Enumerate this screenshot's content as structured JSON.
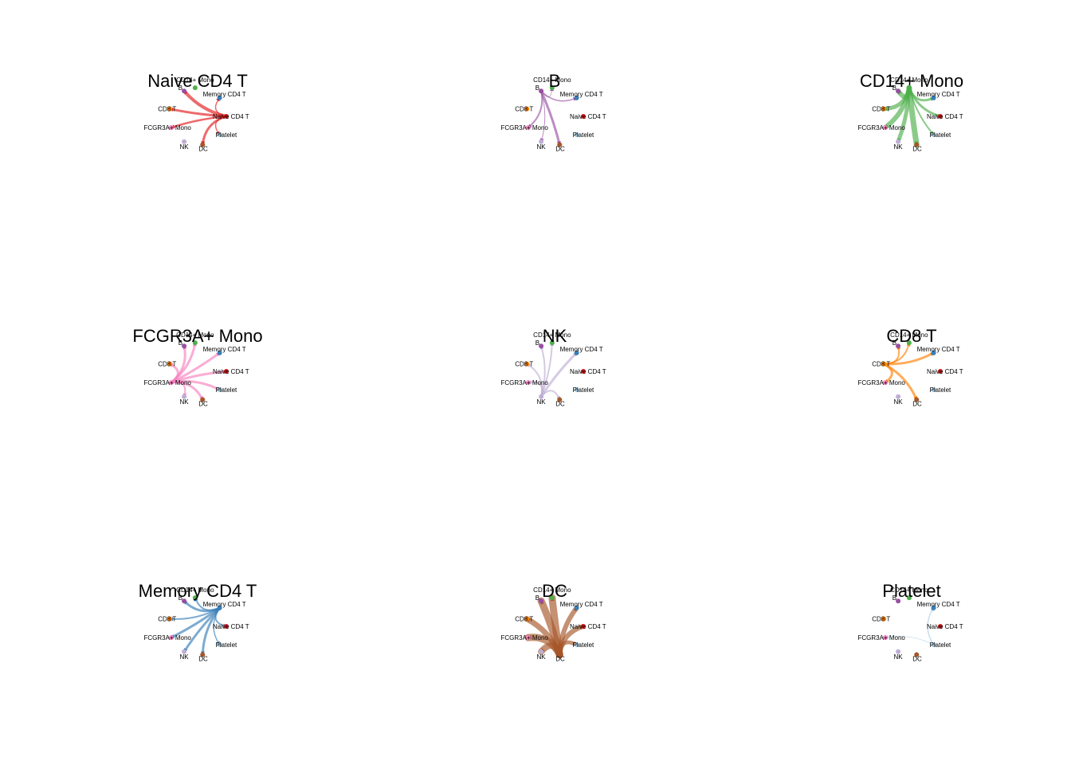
{
  "nodes": [
    {
      "name": "B",
      "color": "#984EA3"
    },
    {
      "name": "CD14+ Mono",
      "color": "#4DAF4A"
    },
    {
      "name": "Memory CD4 T",
      "color": "#377EB8"
    },
    {
      "name": "Naive CD4 T",
      "color": "#E41A1C"
    },
    {
      "name": "Platelet",
      "color": "#A6CEE3"
    },
    {
      "name": "DC",
      "color": "#A65628"
    },
    {
      "name": "NK",
      "color": "#BEAED4"
    },
    {
      "name": "FCGR3A+ Mono",
      "color": "#F781BF"
    },
    {
      "name": "CD8 T",
      "color": "#FF7F00"
    }
  ],
  "panels": [
    {
      "title": "Naive CD4 T",
      "source": "Naive CD4 T",
      "color": "#E41A1C",
      "edges": [
        {
          "to": "B",
          "w": 4
        },
        {
          "to": "CD8 T",
          "w": 3
        },
        {
          "to": "FCGR3A+ Mono",
          "w": 2.5
        },
        {
          "to": "DC",
          "w": 3
        },
        {
          "to": "Memory CD4 T",
          "w": 1.5
        },
        {
          "to": "Platelet",
          "w": 1.5
        }
      ]
    },
    {
      "title": "B",
      "source": "B",
      "color": "#984EA3",
      "edges": [
        {
          "to": "FCGR3A+ Mono",
          "w": 2
        },
        {
          "to": "DC",
          "w": 3
        },
        {
          "to": "Memory CD4 T",
          "w": 1.5
        },
        {
          "to": "CD14+ Mono",
          "w": 0.8
        },
        {
          "to": "NK",
          "w": 1
        }
      ]
    },
    {
      "title": "CD14+ Mono",
      "source": "CD14+ Mono",
      "color": "#4DAF4A",
      "edges": [
        {
          "to": "B",
          "w": 6
        },
        {
          "to": "CD8 T",
          "w": 5
        },
        {
          "to": "FCGR3A+ Mono",
          "w": 6
        },
        {
          "to": "NK",
          "w": 5
        },
        {
          "to": "DC",
          "w": 7
        },
        {
          "to": "Naive CD4 T",
          "w": 3
        },
        {
          "to": "Memory CD4 T",
          "w": 3
        },
        {
          "to": "Platelet",
          "w": 2
        }
      ]
    },
    {
      "title": "FCGR3A+ Mono",
      "source": "FCGR3A+ Mono",
      "color": "#F781BF",
      "edges": [
        {
          "to": "B",
          "w": 3
        },
        {
          "to": "CD8 T",
          "w": 3
        },
        {
          "to": "CD14+ Mono",
          "w": 3
        },
        {
          "to": "Memory CD4 T",
          "w": 3
        },
        {
          "to": "Naive CD4 T",
          "w": 3
        },
        {
          "to": "Platelet",
          "w": 3
        },
        {
          "to": "DC",
          "w": 3
        },
        {
          "to": "NK",
          "w": 2
        }
      ]
    },
    {
      "title": "NK",
      "source": "NK",
      "color": "#BEAED4",
      "edges": [
        {
          "to": "B",
          "w": 2
        },
        {
          "to": "CD8 T",
          "w": 2
        },
        {
          "to": "CD14+ Mono",
          "w": 2
        },
        {
          "to": "Memory CD4 T",
          "w": 3
        },
        {
          "to": "FCGR3A+ Mono",
          "w": 2
        },
        {
          "to": "DC",
          "w": 2
        }
      ]
    },
    {
      "title": "CD8 T",
      "source": "CD8 T",
      "color": "#FF7F00",
      "edges": [
        {
          "to": "B",
          "w": 2
        },
        {
          "to": "CD14+ Mono",
          "w": 2
        },
        {
          "to": "Memory CD4 T",
          "w": 3
        },
        {
          "to": "FCGR3A+ Mono",
          "w": 3
        },
        {
          "to": "DC",
          "w": 3
        }
      ]
    },
    {
      "title": "Memory CD4 T",
      "source": "Memory CD4 T",
      "color": "#377EB8",
      "edges": [
        {
          "to": "B",
          "w": 3
        },
        {
          "to": "CD8 T",
          "w": 2
        },
        {
          "to": "FCGR3A+ Mono",
          "w": 3
        },
        {
          "to": "NK",
          "w": 3
        },
        {
          "to": "DC",
          "w": 3
        },
        {
          "to": "Naive CD4 T",
          "w": 2
        },
        {
          "to": "CD14+ Mono",
          "w": 2
        },
        {
          "to": "Platelet",
          "w": 1.5
        }
      ]
    },
    {
      "title": "DC",
      "source": "DC",
      "color": "#A65628",
      "edges": [
        {
          "to": "B",
          "w": 9
        },
        {
          "to": "CD8 T",
          "w": 7
        },
        {
          "to": "FCGR3A+ Mono",
          "w": 9
        },
        {
          "to": "NK",
          "w": 8
        },
        {
          "to": "CD14+ Mono",
          "w": 9
        },
        {
          "to": "Memory CD4 T",
          "w": 6
        },
        {
          "to": "Naive CD4 T",
          "w": 6
        },
        {
          "to": "Platelet",
          "w": 5
        }
      ]
    },
    {
      "title": "Platelet",
      "source": "Platelet",
      "color": "#A6CEE3",
      "edges": [
        {
          "to": "Memory CD4 T",
          "w": 1.5
        },
        {
          "to": "FCGR3A+ Mono",
          "w": 0.8
        }
      ]
    }
  ]
}
